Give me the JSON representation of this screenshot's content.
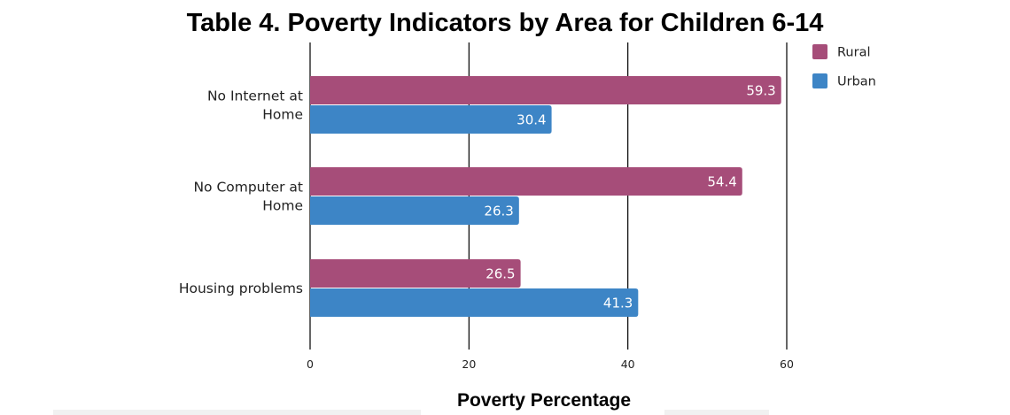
{
  "chart_data": {
    "type": "bar",
    "orientation": "horizontal",
    "title": "Table 4. Poverty Indicators by Area for Children 6-14",
    "xlabel": "Poverty Percentage",
    "ylabel": "",
    "categories": [
      [
        "No Internet at",
        "Home"
      ],
      [
        "No Computer at",
        "Home"
      ],
      [
        "Housing problems"
      ]
    ],
    "series": [
      {
        "name": "Rural",
        "color": "#a64d79",
        "values": [
          59.3,
          54.4,
          26.5
        ]
      },
      {
        "name": "Urban",
        "color": "#3d85c6",
        "values": [
          30.4,
          26.3,
          41.3
        ]
      }
    ],
    "xlim": [
      0,
      60
    ],
    "ticks": [
      0,
      20,
      40,
      60
    ],
    "grid": true,
    "data_labels": true,
    "legend": "top-right"
  }
}
